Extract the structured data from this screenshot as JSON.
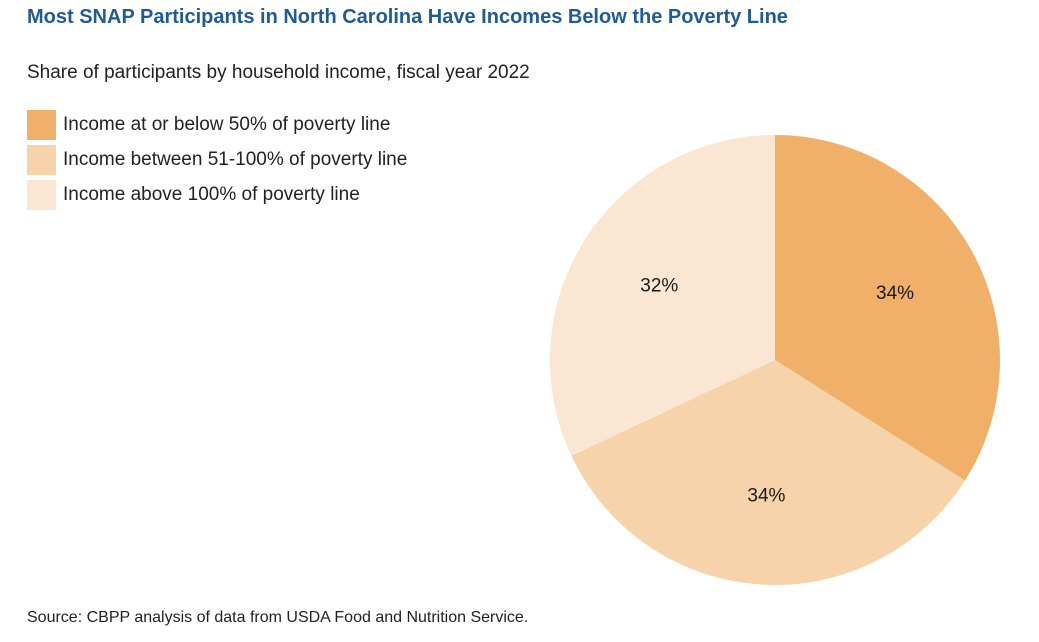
{
  "title": "Most SNAP Participants in North Carolina Have Incomes Below the Poverty Line",
  "subtitle": "Share of participants by household income, fiscal year 2022",
  "source": "Source: CBPP analysis of data from USDA Food and Nutrition Service.",
  "chart_data": {
    "type": "pie",
    "title": "Most SNAP Participants in North Carolina Have Incomes Below the Poverty Line",
    "subtitle": "Share of participants by household income, fiscal year 2022",
    "legend_position": "top-left",
    "categories": [
      "Income at or below 50% of poverty line",
      "Income between 51-100% of poverty line",
      "Income above 100% of poverty line"
    ],
    "values": [
      34,
      34,
      32
    ],
    "value_labels": [
      "34%",
      "34%",
      "32%"
    ],
    "colors": [
      "#f0b06a",
      "#f7d3ab",
      "#fae6d3"
    ]
  }
}
